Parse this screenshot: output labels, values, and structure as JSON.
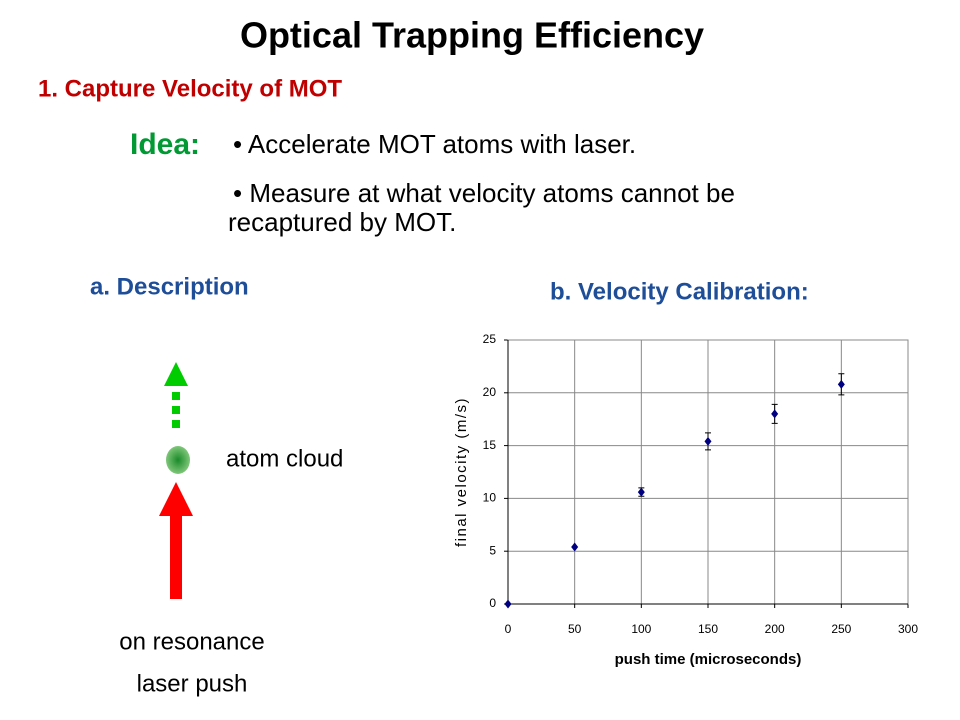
{
  "header": {
    "title": "Optical Trapping Efficiency",
    "subtitle": "1. Capture Velocity of MOT"
  },
  "idea": {
    "label": "Idea:",
    "bullets": [
      [
        "• Accelerate MOT atoms with laser."
      ],
      [
        "• Measure at what velocity atoms cannot be",
        "recaptured by MOT."
      ]
    ]
  },
  "description": {
    "heading": "a. Description",
    "cloud_label": "atom cloud",
    "laser_label": [
      "on resonance",
      "laser push"
    ]
  },
  "calibration": {
    "heading": "b. Velocity Calibration:"
  },
  "chart_data": {
    "type": "scatter",
    "xlabel": "push time (microseconds)",
    "ylabel": "final velocity (m/s)",
    "series": [
      {
        "name": "velocity",
        "color": "#000080",
        "x": [
          0,
          50,
          100,
          150,
          200,
          250
        ],
        "values": [
          0,
          5.4,
          10.6,
          15.4,
          18,
          20.8
        ],
        "errors": [
          0,
          0,
          0.4,
          0.8,
          0.9,
          1.0
        ]
      }
    ],
    "xlim": [
      0,
      300
    ],
    "xticks": [
      0,
      50,
      100,
      150,
      200,
      250,
      300
    ],
    "ylim": [
      0,
      25
    ],
    "yticks": [
      0,
      5,
      10,
      15,
      20,
      25
    ],
    "grid": true
  }
}
